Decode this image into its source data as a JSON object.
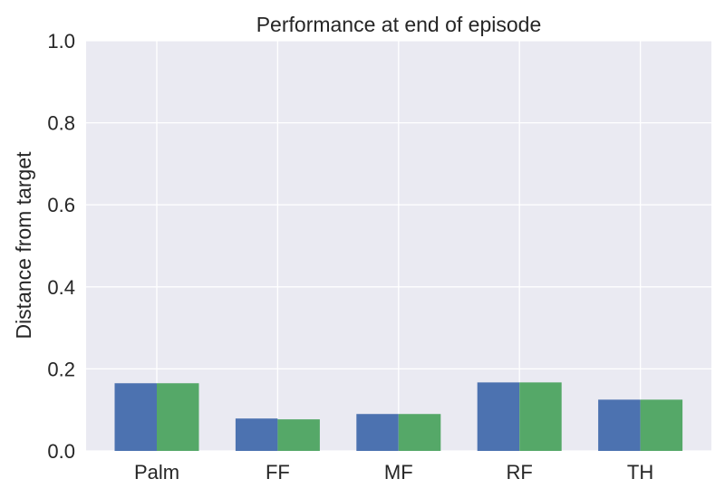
{
  "chart_data": {
    "type": "bar",
    "title": "Performance at end of episode",
    "xlabel": "",
    "ylabel": "Distance from target",
    "categories": [
      "Palm",
      "FF",
      "MF",
      "RF",
      "TH"
    ],
    "series": [
      {
        "values": [
          0.165,
          0.079,
          0.09,
          0.167,
          0.125
        ],
        "color": "#4C72B0"
      },
      {
        "values": [
          0.165,
          0.077,
          0.09,
          0.167,
          0.125
        ],
        "color": "#55A868"
      }
    ],
    "ylim": [
      0,
      1.0
    ],
    "yticks": [
      "0.0",
      "0.2",
      "0.4",
      "0.6",
      "0.8",
      "1.0"
    ],
    "grid": true,
    "background_color": "#EAEAF2",
    "grid_color": "#FFFFFF"
  }
}
